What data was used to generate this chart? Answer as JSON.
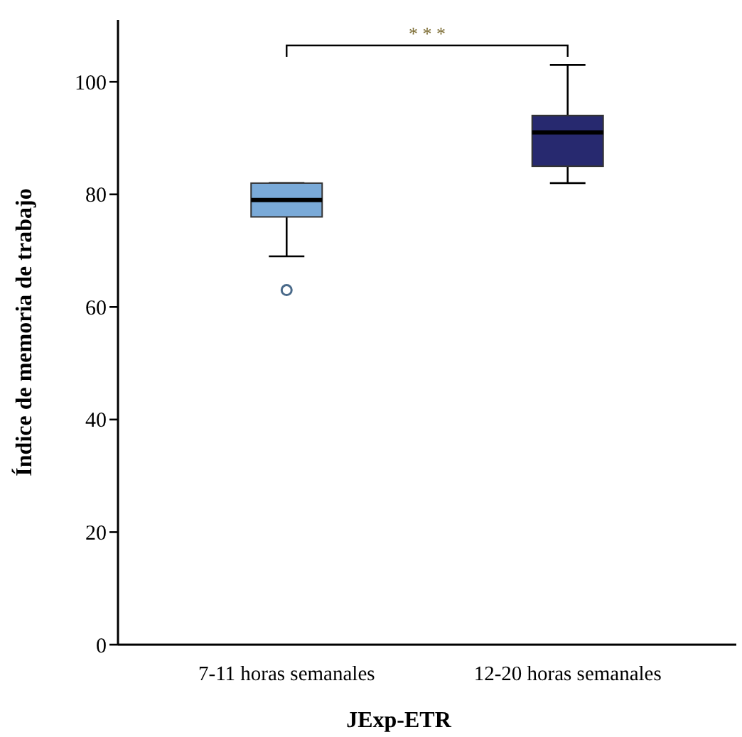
{
  "chart_data": {
    "type": "box",
    "xlabel": "JExp-ETR",
    "ylabel": "Índice de memoria de trabajo",
    "categories": [
      "7-11 horas semanales",
      "12-20 horas semanales"
    ],
    "colors": [
      "#7aaad8",
      "#27296f"
    ],
    "boxes": [
      {
        "low": 69,
        "q1": 76,
        "median": 79,
        "q3": 82,
        "high": 82,
        "outliers": [
          63
        ]
      },
      {
        "low": 82,
        "q1": 85,
        "median": 91,
        "q3": 94,
        "high": 103
      }
    ],
    "ylim": [
      0,
      111
    ],
    "yticks": [
      0,
      20,
      40,
      60,
      80,
      100
    ],
    "grid": false,
    "annotations": [
      "* * *"
    ]
  }
}
